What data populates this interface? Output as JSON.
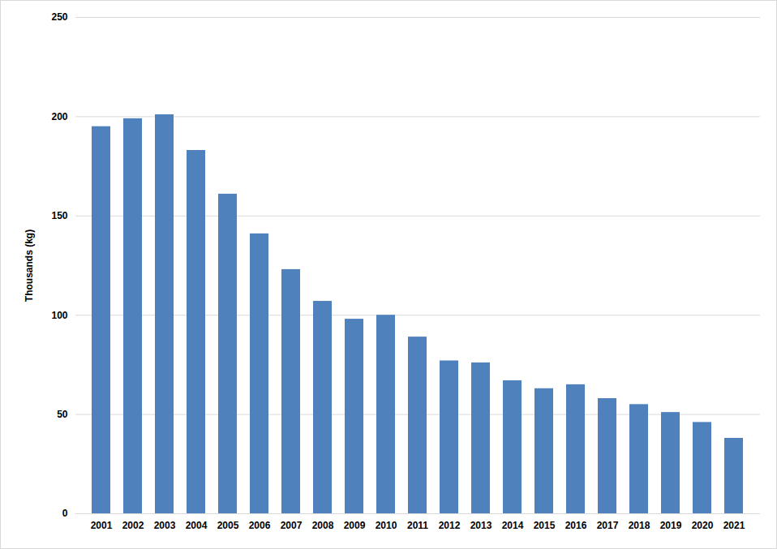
{
  "chart_data": {
    "type": "bar",
    "y_label": "Thousands (kg)",
    "categories": [
      "2001",
      "2002",
      "2003",
      "2004",
      "2005",
      "2006",
      "2007",
      "2008",
      "2009",
      "2010",
      "2011",
      "2012",
      "2013",
      "2014",
      "2015",
      "2016",
      "2017",
      "2018",
      "2019",
      "2020",
      "2021"
    ],
    "values": [
      195,
      199,
      201,
      183,
      161,
      141,
      123,
      107,
      98,
      100,
      89,
      77,
      76,
      67,
      63,
      65,
      58,
      55,
      51,
      46,
      38
    ],
    "color": "#4f81bd",
    "ylim": [
      0,
      250
    ],
    "yticks": [
      0,
      50,
      100,
      150,
      200,
      250
    ],
    "grid": true
  }
}
